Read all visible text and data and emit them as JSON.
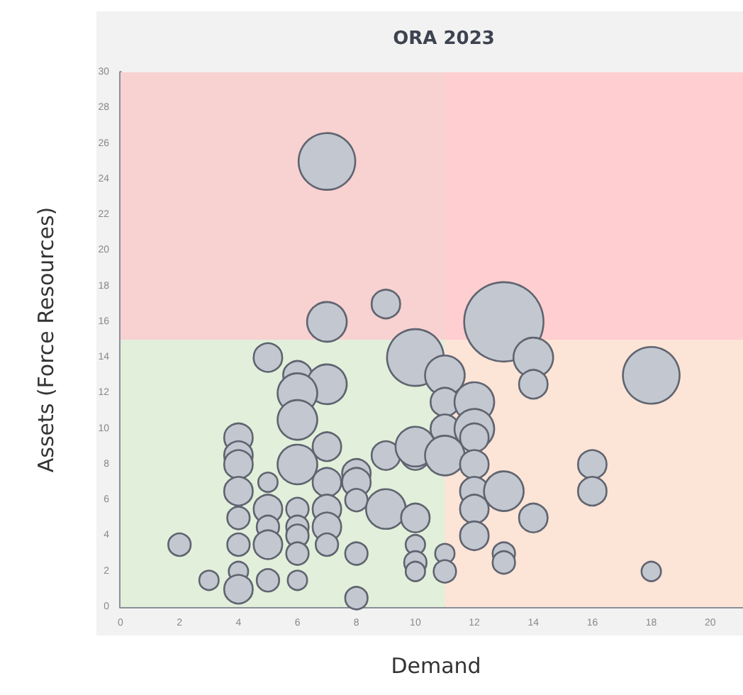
{
  "chart_data": {
    "type": "bubble",
    "title": "ORA 2023",
    "xlabel": "Demand",
    "ylabel": "Assets (Force Resources)",
    "x": [
      7,
      9,
      7,
      5,
      6,
      7,
      6,
      10,
      13,
      14,
      14,
      18,
      11,
      11,
      12,
      6,
      4,
      4,
      4,
      6,
      7,
      5,
      4,
      7,
      8,
      8,
      8,
      9,
      10,
      10,
      9,
      10,
      4,
      5,
      5,
      5,
      6,
      6,
      6,
      6,
      7,
      7,
      7,
      4,
      2,
      8,
      4,
      4,
      3,
      5,
      6,
      8,
      10,
      10,
      10,
      11,
      12,
      12,
      11,
      12,
      12,
      12,
      13,
      14,
      12,
      13,
      13,
      11,
      11,
      16,
      16,
      18
    ],
    "values": [
      25,
      17,
      16,
      14,
      13,
      12.5,
      12,
      14,
      16,
      14,
      12.5,
      13,
      13,
      11.5,
      11.5,
      10.5,
      9.5,
      8.5,
      8,
      8,
      9,
      7,
      6.5,
      7,
      7.5,
      7,
      6,
      8.5,
      8.5,
      9,
      5.5,
      5,
      5,
      5.5,
      4.5,
      3.5,
      5.5,
      4.5,
      4,
      3,
      5.5,
      4.5,
      3.5,
      3.5,
      3.5,
      3,
      2,
      1,
      1.5,
      1.5,
      1.5,
      0.5,
      3.5,
      2.5,
      2,
      10,
      10,
      9.5,
      8.5,
      8,
      6.5,
      5.5,
      6.5,
      5,
      4,
      3,
      2.5,
      3,
      2,
      8,
      6.5,
      2
    ],
    "sizes": [
      0.51,
      0.13,
      0.25,
      0.13,
      0.13,
      0.25,
      0.25,
      0.51,
      1,
      0.25,
      0.13,
      0.51,
      0.25,
      0.13,
      0.25,
      0.25,
      0.13,
      0.13,
      0.13,
      0.25,
      0.13,
      0.06,
      0.13,
      0.13,
      0.13,
      0.13,
      0.08,
      0.13,
      0.13,
      0.25,
      0.25,
      0.13,
      0.08,
      0.13,
      0.08,
      0.13,
      0.08,
      0.08,
      0.08,
      0.08,
      0.13,
      0.13,
      0.08,
      0.08,
      0.08,
      0.08,
      0.06,
      0.13,
      0.06,
      0.08,
      0.06,
      0.08,
      0.06,
      0.08,
      0.06,
      0.13,
      0.25,
      0.13,
      0.25,
      0.13,
      0.13,
      0.13,
      0.25,
      0.13,
      0.13,
      0.08,
      0.08,
      0.06,
      0.08,
      0.13,
      0.13,
      0.06
    ],
    "color": "#c3c7cf",
    "xlim": [
      0,
      21.4
    ],
    "xticks": [
      0,
      2,
      4,
      6,
      8,
      10,
      12,
      14,
      16,
      18,
      20
    ],
    "ylim": [
      0,
      30
    ],
    "yticks": [
      0,
      2,
      4,
      6,
      8,
      10,
      12,
      14,
      16,
      18,
      20,
      22,
      24,
      26,
      28,
      30
    ],
    "grid": false,
    "bands": [
      {
        "axis": "x",
        "from": 0,
        "to": 11,
        "color": "#e2efda"
      },
      {
        "axis": "x",
        "from": 11,
        "to": 21.4,
        "color": "#fce4d6"
      },
      {
        "axis": "y",
        "from": 15,
        "to": 30,
        "color": "#ffc7ce"
      }
    ]
  }
}
